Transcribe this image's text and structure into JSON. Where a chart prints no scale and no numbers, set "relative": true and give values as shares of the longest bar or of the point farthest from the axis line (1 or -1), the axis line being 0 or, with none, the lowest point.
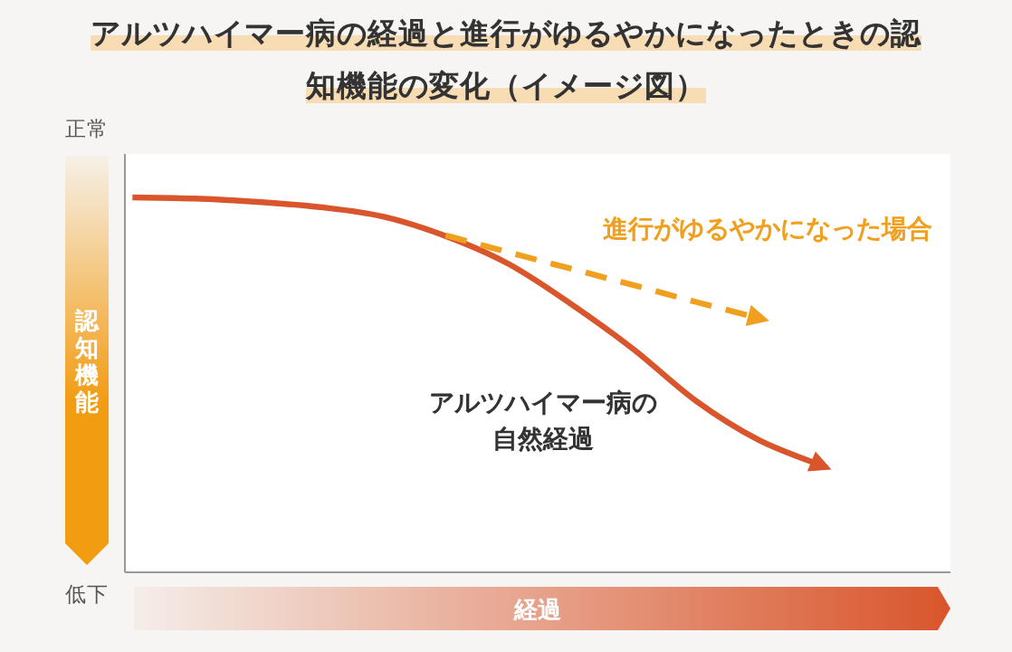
{
  "chart_data": {
    "type": "line",
    "title": "アルツハイマー病の経過と進行がゆるやかになったときの認知機能の変化（イメージ図）",
    "xlabel": "経過",
    "ylabel": "認知機能",
    "relative": true,
    "annotations": [
      "正常",
      "低下"
    ],
    "categories": [
      null,
      null,
      null,
      null,
      null,
      null,
      null,
      null,
      null,
      null,
      null,
      null
    ],
    "series": [
      {
        "name": "アルツハイマー病の自然経過",
        "color": "#d9552b",
        "line_style": "solid",
        "values": [
          1.0,
          0.997,
          0.988,
          0.974,
          0.949,
          0.897,
          0.823,
          0.716,
          0.595,
          0.457,
          0.353,
          0.285
        ]
      },
      {
        "name": "進行がゆるやかになった場合",
        "color": "#f0a01e",
        "line_style": "dashed",
        "values": [
          null,
          null,
          null,
          null,
          null,
          0.899,
          0.854,
          0.81,
          0.766,
          0.721,
          0.678,
          null
        ]
      }
    ]
  }
}
